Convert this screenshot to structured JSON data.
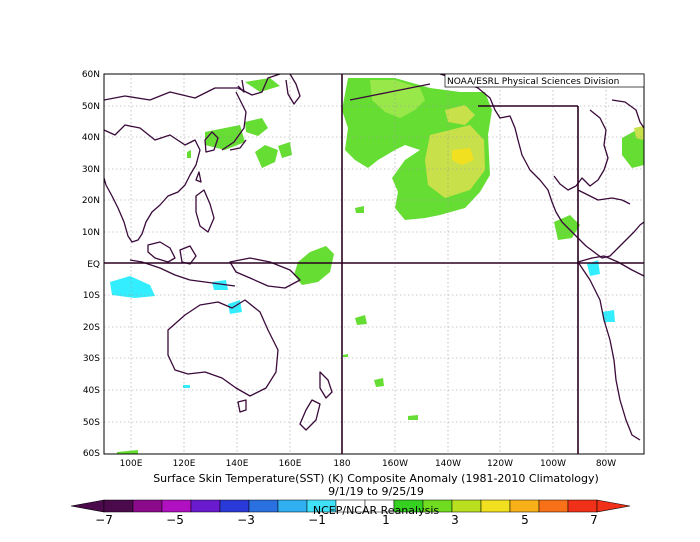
{
  "map": {
    "credit": "NOAA/ESRL Physical Sciences Division",
    "lat_labels": [
      "60N",
      "50N",
      "40N",
      "30N",
      "20N",
      "10N",
      "EQ",
      "10S",
      "20S",
      "30S",
      "40S",
      "50S",
      "60S"
    ],
    "lon_labels": [
      "100E",
      "120E",
      "140E",
      "160E",
      "180",
      "160W",
      "140W",
      "120W",
      "100W",
      "80W"
    ],
    "title_line1": "Surface Skin Temperature(SST) (K) Composite Anomaly (1981-2010 Climatology)",
    "title_line2": "9/1/19 to 9/25/19",
    "footer": "NCEP/NCAR Reanalysis",
    "colors": {
      "land_outline": "#3a0a3a",
      "grid": "#9a9a9a",
      "frame": "#000000",
      "anom_green": "#66dd33",
      "anom_lightgreen": "#99e84a",
      "anom_yellowgreen": "#c8e04a",
      "anom_yellow": "#f0e020",
      "anom_cyan": "#33eeff"
    }
  },
  "colorbar": {
    "labels": [
      "−7",
      "−5",
      "−3",
      "−1",
      "1",
      "3",
      "5",
      "7"
    ],
    "colors": [
      "#4b0a4b",
      "#8a0a8a",
      "#b010c0",
      "#6a1bd0",
      "#2a3ad8",
      "#2a70e0",
      "#30b0f0",
      "#40e0f8",
      "#ffffff",
      "#ffffff",
      "#36d020",
      "#70dc20",
      "#b8e020",
      "#f0e020",
      "#f8b018",
      "#f87018",
      "#f03018"
    ]
  }
}
